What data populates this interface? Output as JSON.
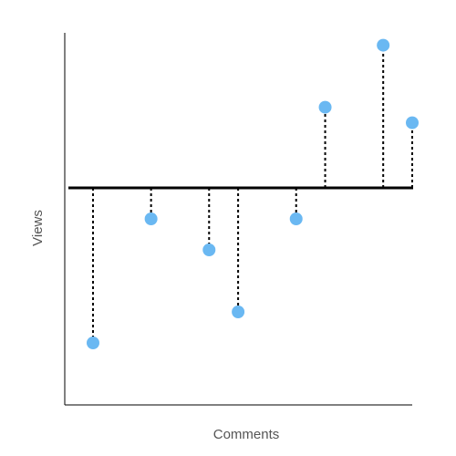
{
  "chart_data": {
    "type": "scatter",
    "style": "lollipop-from-baseline",
    "title": "",
    "xlabel": "Comments",
    "ylabel": "Views",
    "baseline": 0,
    "xlim": [
      0,
      12
    ],
    "ylim": [
      -7,
      5
    ],
    "grid": false,
    "legend": "none",
    "points": [
      {
        "x": 1,
        "y": -5
      },
      {
        "x": 3,
        "y": -1
      },
      {
        "x": 5,
        "y": -2
      },
      {
        "x": 6,
        "y": -4
      },
      {
        "x": 8,
        "y": -1
      },
      {
        "x": 9,
        "y": 2.6
      },
      {
        "x": 11,
        "y": 4.6
      },
      {
        "x": 12,
        "y": 2.1
      }
    ],
    "colors": {
      "marker": "#6ab8f2",
      "baseline": "#000000",
      "stem": "#000000",
      "axis": "#000000"
    }
  }
}
